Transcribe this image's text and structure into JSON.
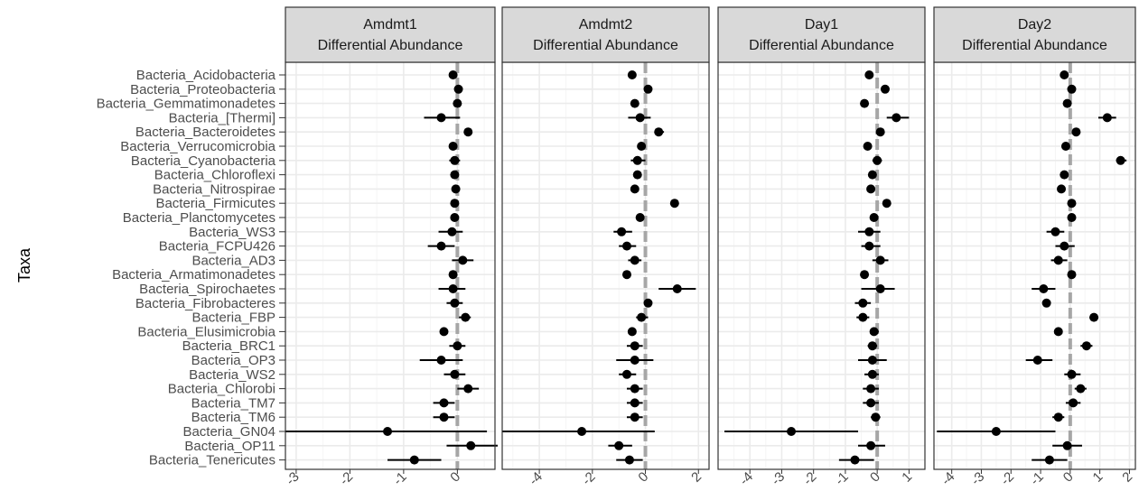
{
  "chart_data": {
    "type": "forest",
    "ylabel": "Taxa",
    "xlabel": "",
    "reference_line": 0,
    "taxa": [
      "Bacteria_Acidobacteria",
      "Bacteria_Proteobacteria",
      "Bacteria_Gemmatimonadetes",
      "Bacteria_[Thermi]",
      "Bacteria_Bacteroidetes",
      "Bacteria_Verrucomicrobia",
      "Bacteria_Cyanobacteria",
      "Bacteria_Chloroflexi",
      "Bacteria_Nitrospirae",
      "Bacteria_Firmicutes",
      "Bacteria_Planctomycetes",
      "Bacteria_WS3",
      "Bacteria_FCPU426",
      "Bacteria_AD3",
      "Bacteria_Armatimonadetes",
      "Bacteria_Spirochaetes",
      "Bacteria_Fibrobacteres",
      "Bacteria_FBP",
      "Bacteria_Elusimicrobia",
      "Bacteria_BRC1",
      "Bacteria_OP3",
      "Bacteria_WS2",
      "Bacteria_Chlorobi",
      "Bacteria_TM7",
      "Bacteria_TM6",
      "Bacteria_GN04",
      "Bacteria_OP11",
      "Bacteria_Tenericutes"
    ],
    "panels": [
      {
        "title_line1": "Amdmt1",
        "title_line2": "Differential Abundance",
        "xlim": [
          -3.2,
          0.7
        ],
        "ticks": [
          -3,
          -2,
          -1,
          0
        ],
        "tick_labels": [
          "-3",
          "-2",
          "-1",
          "0"
        ],
        "estimate": [
          -0.08,
          0.02,
          0.0,
          -0.3,
          0.2,
          -0.08,
          -0.05,
          -0.05,
          -0.03,
          -0.05,
          -0.05,
          -0.1,
          -0.3,
          0.1,
          -0.08,
          -0.08,
          -0.05,
          0.15,
          -0.25,
          0.0,
          -0.3,
          -0.05,
          0.2,
          -0.25,
          -0.25,
          -1.3,
          0.25,
          -0.8
        ],
        "lower": [
          -0.08,
          0.02,
          0.0,
          -0.62,
          0.2,
          -0.08,
          -0.15,
          -0.05,
          -0.03,
          -0.05,
          -0.05,
          -0.35,
          -0.55,
          -0.1,
          -0.08,
          -0.35,
          -0.2,
          0.03,
          -0.25,
          -0.15,
          -0.7,
          -0.25,
          0.0,
          -0.45,
          -0.45,
          -3.2,
          -0.2,
          -1.3
        ],
        "upper": [
          -0.08,
          0.02,
          0.0,
          0.05,
          0.2,
          -0.08,
          0.05,
          -0.05,
          -0.03,
          -0.05,
          -0.05,
          0.1,
          -0.05,
          0.3,
          -0.08,
          0.15,
          0.1,
          0.25,
          -0.25,
          0.15,
          0.1,
          0.15,
          0.4,
          -0.05,
          -0.05,
          0.55,
          0.75,
          -0.3
        ]
      },
      {
        "title_line1": "Amdmt2",
        "title_line2": "Differential Abundance",
        "xlim": [
          -5.4,
          2.4
        ],
        "ticks": [
          -4,
          -2,
          0,
          2
        ],
        "tick_labels": [
          "-4",
          "-2",
          "0",
          "2"
        ],
        "estimate": [
          -0.5,
          0.1,
          -0.4,
          -0.2,
          0.5,
          -0.15,
          -0.3,
          -0.3,
          -0.4,
          1.1,
          -0.2,
          -0.9,
          -0.7,
          -0.4,
          -0.7,
          1.2,
          0.1,
          -0.15,
          -0.5,
          -0.4,
          -0.4,
          -0.7,
          -0.4,
          -0.4,
          -0.4,
          -2.4,
          -1.0,
          -0.6
        ],
        "lower": [
          -0.5,
          0.1,
          -0.4,
          -0.65,
          0.4,
          -0.15,
          -0.55,
          -0.3,
          -0.4,
          1.1,
          -0.2,
          -1.2,
          -1.0,
          -0.65,
          -0.7,
          0.5,
          -0.05,
          -0.35,
          -0.6,
          -0.7,
          -1.1,
          -1.0,
          -0.7,
          -0.7,
          -0.7,
          -5.4,
          -1.4,
          -1.1
        ],
        "upper": [
          -0.5,
          0.1,
          -0.4,
          0.2,
          0.7,
          -0.15,
          0.0,
          -0.3,
          -0.4,
          1.1,
          -0.2,
          -0.5,
          -0.35,
          -0.15,
          -0.7,
          1.9,
          0.25,
          0.1,
          -0.4,
          -0.1,
          0.3,
          -0.35,
          -0.1,
          -0.1,
          -0.1,
          0.35,
          -0.5,
          -0.1
        ]
      },
      {
        "title_line1": "Day1",
        "title_line2": "Differential Abundance",
        "xlim": [
          -5.0,
          1.5
        ],
        "ticks": [
          -4,
          -3,
          -2,
          -1,
          0,
          1
        ],
        "tick_labels": [
          "-4",
          "-3",
          "-2",
          "-1",
          "0",
          "1"
        ],
        "estimate": [
          -0.25,
          0.25,
          -0.4,
          0.6,
          0.1,
          -0.3,
          0.0,
          -0.15,
          -0.2,
          0.3,
          -0.1,
          -0.25,
          -0.25,
          0.1,
          -0.4,
          0.1,
          -0.45,
          -0.45,
          -0.1,
          -0.15,
          -0.15,
          -0.15,
          -0.2,
          -0.2,
          -0.05,
          -2.7,
          -0.2,
          -0.7
        ],
        "lower": [
          -0.25,
          0.25,
          -0.4,
          0.3,
          0.1,
          -0.3,
          -0.15,
          -0.15,
          -0.2,
          0.3,
          -0.1,
          -0.6,
          -0.5,
          -0.15,
          -0.4,
          -0.5,
          -0.7,
          -0.65,
          -0.2,
          -0.3,
          -0.6,
          -0.4,
          -0.45,
          -0.45,
          -0.2,
          -4.8,
          -0.6,
          -1.2
        ],
        "upper": [
          -0.25,
          0.25,
          -0.4,
          1.0,
          0.1,
          -0.3,
          0.15,
          -0.15,
          -0.2,
          0.3,
          -0.1,
          0.1,
          0.1,
          0.35,
          -0.4,
          0.55,
          -0.2,
          -0.25,
          0.05,
          0.0,
          0.3,
          0.05,
          0.05,
          0.05,
          0.1,
          -0.6,
          0.25,
          -0.1
        ]
      },
      {
        "title_line1": "Day2",
        "title_line2": "Differential Abundance",
        "xlim": [
          -4.6,
          2.2
        ],
        "ticks": [
          -4,
          -3,
          -2,
          -1,
          0,
          1,
          2
        ],
        "tick_labels": [
          "-4",
          "-3",
          "-2",
          "-1",
          "0",
          "1",
          "2"
        ],
        "estimate": [
          -0.2,
          0.05,
          -0.1,
          1.25,
          0.2,
          -0.15,
          1.7,
          -0.2,
          -0.3,
          0.05,
          0.05,
          -0.5,
          -0.2,
          -0.4,
          0.05,
          -0.9,
          -0.8,
          0.8,
          -0.4,
          0.55,
          -1.1,
          0.05,
          0.35,
          0.1,
          -0.4,
          -2.5,
          -0.1,
          -0.7
        ],
        "lower": [
          -0.2,
          0.05,
          -0.1,
          0.95,
          0.2,
          -0.15,
          1.55,
          -0.2,
          -0.3,
          0.05,
          0.05,
          -0.8,
          -0.5,
          -0.65,
          0.05,
          -1.3,
          -0.8,
          0.65,
          -0.4,
          0.35,
          -1.5,
          -0.2,
          0.15,
          -0.15,
          -0.6,
          -4.5,
          -0.6,
          -1.3
        ],
        "upper": [
          -0.2,
          0.05,
          -0.1,
          1.55,
          0.2,
          -0.15,
          1.9,
          -0.2,
          -0.3,
          0.05,
          0.05,
          -0.2,
          0.15,
          -0.1,
          0.05,
          -0.5,
          -0.8,
          0.95,
          -0.4,
          0.75,
          -0.6,
          0.35,
          0.55,
          0.35,
          -0.2,
          -0.5,
          0.4,
          -0.1
        ]
      }
    ],
    "colors": {
      "point": "#000000",
      "reference_line": "#a6a6a6",
      "strip_fill": "#d9d9d9",
      "strip_border": "#333333",
      "grid_major": "#ebebeb",
      "grid_minor": "#f5f5f5",
      "panel_border": "#333333"
    }
  }
}
